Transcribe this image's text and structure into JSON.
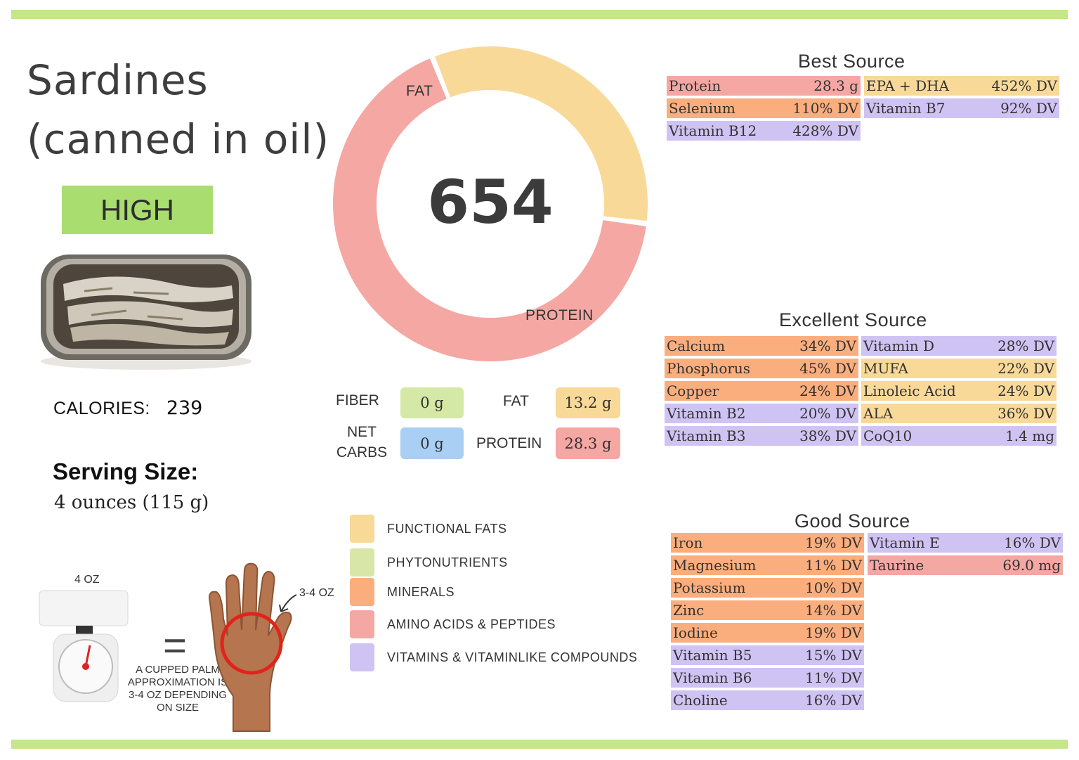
{
  "colors": {
    "fat": "#f8d998",
    "protein": "#f4a7a3",
    "phyto": "#d8e6a8",
    "minerals": "#fbae7d",
    "vitamins": "#cfc3f3",
    "fiber_pill": "#d4e9a5",
    "carbs_pill": "#a9cff4",
    "accent": "#c5e68a",
    "level_badge": "#a9dd6f"
  },
  "food": {
    "title_line1": "Sardines",
    "title_line2": "(canned in oil)",
    "level": "HIGH",
    "photo_icon": "sardine-tin-photo",
    "calories_label": "CALORIES:",
    "calories_value": "239",
    "serving_label": "Serving Size:",
    "serving_value": "4 ounces (115 g)"
  },
  "chart_data": {
    "type": "pie",
    "title": "654",
    "labels": [
      "FAT",
      "PROTEIN"
    ],
    "values": [
      33,
      67
    ],
    "colors": [
      "#f8d998",
      "#f4a7a3"
    ]
  },
  "macros": {
    "fiber_label": "FIBER",
    "fiber_value": "0 g",
    "net_carbs_label_1": "NET",
    "net_carbs_label_2": "CARBS",
    "net_carbs_value": "0 g",
    "fat_label": "FAT",
    "fat_value": "13.2 g",
    "protein_label": "PROTEIN",
    "protein_value": "28.3 g"
  },
  "legend": [
    {
      "label": "FUNCTIONAL  FATS",
      "color": "#f8d998"
    },
    {
      "label": "PHYTONUTRIENTS",
      "color": "#d8e6a8"
    },
    {
      "label": "MINERALS",
      "color": "#fbae7d"
    },
    {
      "label": "AMINO ACIDS & PEPTIDES",
      "color": "#f4a7a3"
    },
    {
      "label": "VITAMINS & VITAMINLIKE COMPOUNDS",
      "color": "#cfc3f3"
    }
  ],
  "portion": {
    "scale_label": "4 OZ",
    "palm_label": "3-4 OZ",
    "equals": "=",
    "caption_1": "A CUPPED PALM",
    "caption_2": "APPROXIMATION IS",
    "caption_3": "3-4 OZ DEPENDING",
    "caption_4": "ON SIZE"
  },
  "best_source": {
    "title": "Best Source",
    "left": [
      {
        "name": "Protein",
        "value": "28.3 g",
        "color": "#f4a7a3"
      },
      {
        "name": "Selenium",
        "value": "110% DV",
        "color": "#fbae7d"
      },
      {
        "name": "Vitamin B12",
        "value": "428% DV",
        "color": "#cfc3f3"
      }
    ],
    "right": [
      {
        "name": "EPA + DHA",
        "value": "452% DV",
        "color": "#f8d998"
      },
      {
        "name": "Vitamin B7",
        "value": "92% DV",
        "color": "#cfc3f3"
      }
    ]
  },
  "excellent_source": {
    "title": "Excellent Source",
    "left": [
      {
        "name": "Calcium",
        "value": "34% DV",
        "color": "#fbae7d"
      },
      {
        "name": "Phosphorus",
        "value": "45% DV",
        "color": "#fbae7d"
      },
      {
        "name": "Copper",
        "value": "24% DV",
        "color": "#fbae7d"
      },
      {
        "name": "Vitamin B2",
        "value": "20% DV",
        "color": "#cfc3f3"
      },
      {
        "name": "Vitamin B3",
        "value": "38% DV",
        "color": "#cfc3f3"
      }
    ],
    "right": [
      {
        "name": "Vitamin D",
        "value": "28% DV",
        "color": "#cfc3f3"
      },
      {
        "name": "MUFA",
        "value": "22% DV",
        "color": "#f8d998"
      },
      {
        "name": "Linoleic Acid",
        "value": "24% DV",
        "color": "#f8d998"
      },
      {
        "name": "ALA",
        "value": "36% DV",
        "color": "#f8d998"
      },
      {
        "name": "CoQ10",
        "value": "1.4 mg",
        "color": "#cfc3f3"
      }
    ]
  },
  "good_source": {
    "title": "Good Source",
    "left": [
      {
        "name": "Iron",
        "value": "19% DV",
        "color": "#fbae7d"
      },
      {
        "name": "Magnesium",
        "value": "11% DV",
        "color": "#fbae7d"
      },
      {
        "name": "Potassium",
        "value": "10% DV",
        "color": "#fbae7d"
      },
      {
        "name": "Zinc",
        "value": "14% DV",
        "color": "#fbae7d"
      },
      {
        "name": "Iodine",
        "value": "19% DV",
        "color": "#fbae7d"
      },
      {
        "name": "Vitamin B5",
        "value": "15% DV",
        "color": "#cfc3f3"
      },
      {
        "name": "Vitamin B6",
        "value": "11% DV",
        "color": "#cfc3f3"
      },
      {
        "name": "Choline",
        "value": "16% DV",
        "color": "#cfc3f3"
      }
    ],
    "right": [
      {
        "name": "Vitamin E",
        "value": "16% DV",
        "color": "#cfc3f3"
      },
      {
        "name": "Taurine",
        "value": "69.0 mg",
        "color": "#f4a7a3"
      }
    ]
  }
}
